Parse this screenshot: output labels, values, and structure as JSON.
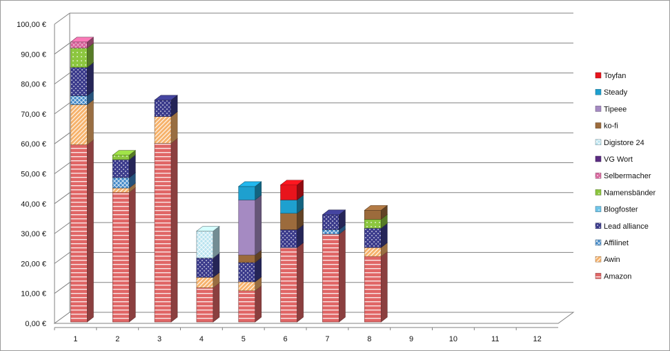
{
  "chart_data": {
    "type": "bar",
    "stacked": true,
    "three_d": true,
    "title": "",
    "xlabel": "",
    "ylabel": "",
    "ylim": [
      0,
      100
    ],
    "y_ticks": [
      "0,00 €",
      "10,00 €",
      "20,00 €",
      "30,00 €",
      "40,00 €",
      "50,00 €",
      "60,00 €",
      "70,00 €",
      "80,00 €",
      "90,00 €",
      "100,00 €"
    ],
    "grid": true,
    "legend_position": "right",
    "categories": [
      "1",
      "2",
      "3",
      "4",
      "5",
      "6",
      "7",
      "8",
      "9",
      "10",
      "11",
      "12"
    ],
    "series": [
      {
        "name": "Amazon",
        "color": "#e06666",
        "values": [
          59.5,
          43.5,
          60,
          11.5,
          10.5,
          25,
          29.5,
          22,
          0,
          0,
          0,
          0
        ]
      },
      {
        "name": "Awin",
        "color": "#f6b26b",
        "values": [
          13.5,
          1.5,
          9,
          3.5,
          3,
          0,
          0,
          3,
          0,
          0,
          0,
          0
        ]
      },
      {
        "name": "Affilinet",
        "color": "#3d85c6",
        "values": [
          3,
          3.5,
          0,
          0,
          0,
          0,
          1.5,
          0,
          0,
          0,
          0,
          0
        ]
      },
      {
        "name": "Lead alliance",
        "color": "#3c3c8c",
        "values": [
          9.5,
          6,
          5.5,
          6.5,
          6.5,
          6,
          5,
          6.5,
          0,
          0,
          0,
          0
        ]
      },
      {
        "name": "Blogfoster",
        "color": "#6fc4e8",
        "values": [
          0,
          0,
          0,
          0,
          0,
          0,
          0,
          0,
          0,
          0,
          0,
          0
        ]
      },
      {
        "name": "Namensbänder",
        "color": "#8cc63f",
        "values": [
          6.5,
          1.5,
          0,
          0,
          0,
          0,
          0,
          3,
          0,
          0,
          0,
          0
        ]
      },
      {
        "name": "Selbermacher",
        "color": "#d96aa0",
        "values": [
          2,
          0,
          0,
          0,
          0,
          0,
          0,
          0,
          0,
          0,
          0,
          0
        ]
      },
      {
        "name": "VG Wort",
        "color": "#5b2c82",
        "values": [
          0,
          0,
          0,
          0,
          0,
          0,
          0,
          0,
          0,
          0,
          0,
          0
        ]
      },
      {
        "name": "Digistore 24",
        "color": "#b9e3ef",
        "values": [
          0,
          0,
          0,
          9,
          0,
          0,
          0,
          0,
          0,
          0,
          0,
          0
        ]
      },
      {
        "name": "ko-fi",
        "color": "#9c6b3c",
        "values": [
          0,
          0,
          0,
          0,
          2.5,
          5.5,
          0,
          3,
          0,
          0,
          0,
          0
        ]
      },
      {
        "name": "Tipeee",
        "color": "#a58ac2",
        "values": [
          0,
          0,
          0,
          0,
          18.5,
          0,
          0,
          0,
          0,
          0,
          0,
          0
        ]
      },
      {
        "name": "Steady",
        "color": "#1ea0cf",
        "values": [
          0,
          0,
          0,
          0,
          4.5,
          4.5,
          0,
          0,
          0,
          0,
          0,
          0
        ]
      },
      {
        "name": "Toyfan",
        "color": "#e8141c",
        "values": [
          0,
          0,
          0,
          0,
          0,
          5,
          0,
          0,
          0,
          0,
          0,
          0
        ]
      }
    ]
  }
}
